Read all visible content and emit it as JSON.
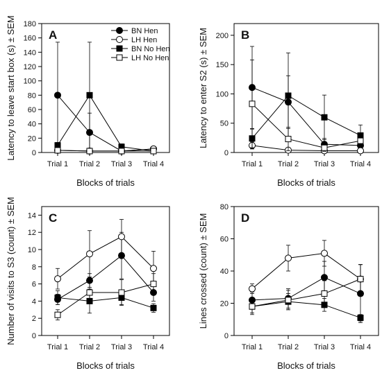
{
  "chart_data": [
    {
      "type": "line",
      "panel": "A",
      "ylabel": "Latency to leave start box (s) ± SEM",
      "xlabel": "Blocks of trials",
      "categories": [
        "Trial 1",
        "Trial 2",
        "Trial 3",
        "Trial 4"
      ],
      "ylim": [
        0,
        180
      ],
      "yticks": [
        0,
        20,
        40,
        60,
        80,
        100,
        120,
        140,
        160,
        180
      ],
      "legend": "top-right",
      "series": [
        {
          "name": "BN Hen",
          "marker": "circle",
          "fill": "#000000",
          "values": [
            80,
            28,
            2,
            5
          ],
          "err": [
            74,
            27,
            1,
            1
          ]
        },
        {
          "name": "LH Hen",
          "marker": "circle",
          "fill": "#ffffff",
          "values": [
            3,
            2,
            2,
            5
          ],
          "err": [
            2,
            1,
            1,
            1
          ]
        },
        {
          "name": "BN No Hen",
          "marker": "square",
          "fill": "#000000",
          "values": [
            10,
            80,
            8,
            2
          ],
          "err": [
            4,
            74,
            4,
            1
          ]
        },
        {
          "name": "LH No Hen",
          "marker": "square",
          "fill": "#ffffff",
          "values": [
            3,
            2,
            2,
            2
          ],
          "err": [
            2,
            1,
            1,
            1
          ]
        }
      ]
    },
    {
      "type": "line",
      "panel": "B",
      "ylabel": "Latency to enter S2 (s) ± SEM",
      "xlabel": "Blocks of trials",
      "categories": [
        "Trial 1",
        "Trial 2",
        "Trial 3",
        "Trial 4"
      ],
      "ylim": [
        0,
        220
      ],
      "yticks": [
        0,
        50,
        100,
        150,
        200
      ],
      "series": [
        {
          "name": "BN Hen",
          "marker": "circle",
          "fill": "#000000",
          "values": [
            111,
            86,
            14,
            12
          ],
          "err": [
            70,
            45,
            10,
            8
          ]
        },
        {
          "name": "LH Hen",
          "marker": "circle",
          "fill": "#ffffff",
          "values": [
            12,
            4,
            3,
            3
          ],
          "err": [
            6,
            3,
            2,
            2
          ]
        },
        {
          "name": "BN No Hen",
          "marker": "square",
          "fill": "#000000",
          "values": [
            24,
            97,
            60,
            29
          ],
          "err": [
            16,
            73,
            38,
            18
          ]
        },
        {
          "name": "LH No Hen",
          "marker": "square",
          "fill": "#ffffff",
          "values": [
            83,
            23,
            8,
            20
          ],
          "err": [
            75,
            20,
            6,
            10
          ]
        }
      ]
    },
    {
      "type": "line",
      "panel": "C",
      "ylabel": "Number of visits to S3 (count) ± SEM",
      "xlabel": "Blocks of trials",
      "categories": [
        "Trial 1",
        "Trial 2",
        "Trial 3",
        "Trial 4"
      ],
      "ylim": [
        0,
        15
      ],
      "yticks": [
        0,
        2,
        4,
        6,
        8,
        10,
        12,
        14
      ],
      "series": [
        {
          "name": "BN Hen",
          "marker": "circle",
          "fill": "#000000",
          "values": [
            4.2,
            6.4,
            9.3,
            5.0
          ],
          "err": [
            0.6,
            0.8,
            2.7,
            1.0
          ]
        },
        {
          "name": "LH Hen",
          "marker": "circle",
          "fill": "#ffffff",
          "values": [
            6.6,
            9.5,
            11.5,
            7.8
          ],
          "err": [
            1.2,
            2.7,
            2.0,
            2.0
          ]
        },
        {
          "name": "BN No Hen",
          "marker": "square",
          "fill": "#000000",
          "values": [
            4.4,
            4.0,
            4.4,
            3.2
          ],
          "err": [
            0.8,
            1.4,
            0.8,
            0.5
          ]
        },
        {
          "name": "LH No Hen",
          "marker": "square",
          "fill": "#ffffff",
          "values": [
            2.4,
            5.0,
            5.0,
            6.0
          ],
          "err": [
            0.6,
            1.3,
            1.5,
            1.2
          ]
        }
      ]
    },
    {
      "type": "line",
      "panel": "D",
      "ylabel": "Lines crossed (count) ± SEM",
      "xlabel": "Blocks of trials",
      "categories": [
        "Trial 1",
        "Trial 2",
        "Trial 3",
        "Trial 4"
      ],
      "ylim": [
        0,
        80
      ],
      "yticks": [
        0,
        20,
        40,
        60,
        80
      ],
      "series": [
        {
          "name": "BN Hen",
          "marker": "circle",
          "fill": "#000000",
          "values": [
            22,
            23,
            36,
            26
          ],
          "err": [
            5,
            6,
            10,
            18
          ]
        },
        {
          "name": "LH Hen",
          "marker": "circle",
          "fill": "#ffffff",
          "values": [
            29,
            48,
            51,
            35
          ],
          "err": [
            3,
            8,
            8,
            9
          ]
        },
        {
          "name": "BN No Hen",
          "marker": "square",
          "fill": "#000000",
          "values": [
            18,
            21,
            19,
            11
          ],
          "err": [
            4,
            5,
            4,
            2
          ]
        },
        {
          "name": "LH No Hen",
          "marker": "square",
          "fill": "#ffffff",
          "values": [
            18,
            22,
            26,
            35
          ],
          "err": [
            5,
            6,
            8,
            9
          ]
        }
      ]
    }
  ]
}
